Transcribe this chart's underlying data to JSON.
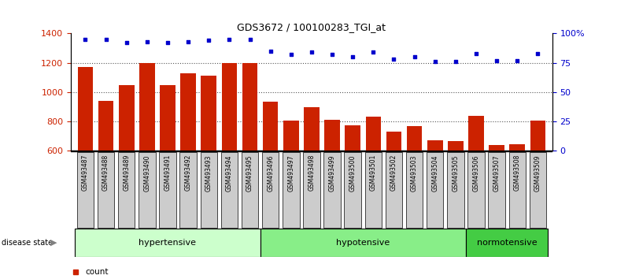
{
  "title": "GDS3672 / 100100283_TGI_at",
  "samples": [
    "GSM493487",
    "GSM493488",
    "GSM493489",
    "GSM493490",
    "GSM493491",
    "GSM493492",
    "GSM493493",
    "GSM493494",
    "GSM493495",
    "GSM493496",
    "GSM493497",
    "GSM493498",
    "GSM493499",
    "GSM493500",
    "GSM493501",
    "GSM493502",
    "GSM493503",
    "GSM493504",
    "GSM493505",
    "GSM493506",
    "GSM493507",
    "GSM493508",
    "GSM493509"
  ],
  "counts": [
    1170,
    940,
    1050,
    1200,
    1050,
    1130,
    1110,
    1200,
    1200,
    935,
    805,
    895,
    810,
    775,
    830,
    730,
    770,
    670,
    665,
    840,
    640,
    645,
    805
  ],
  "percentiles": [
    95,
    95,
    92,
    93,
    92,
    93,
    94,
    95,
    95,
    85,
    82,
    84,
    82,
    80,
    84,
    78,
    80,
    76,
    76,
    83,
    77,
    77,
    83
  ],
  "groups": [
    {
      "label": "hypertensive",
      "start": 0,
      "end": 9,
      "color": "#ccffcc"
    },
    {
      "label": "hypotensive",
      "start": 9,
      "end": 19,
      "color": "#88ee88"
    },
    {
      "label": "normotensive",
      "start": 19,
      "end": 23,
      "color": "#44cc44"
    }
  ],
  "ylim_left": [
    600,
    1400
  ],
  "ylim_right": [
    0,
    100
  ],
  "bar_color": "#cc2200",
  "dot_color": "#0000cc",
  "grid_color": "#555555",
  "bg_color": "#ffffff",
  "yticks_left": [
    600,
    800,
    1000,
    1200,
    1400
  ],
  "yticks_right": [
    0,
    25,
    50,
    75,
    100
  ],
  "ytick_labels_right": [
    "0",
    "25",
    "50",
    "75",
    "100%"
  ],
  "xtick_bg_color": "#cccccc"
}
